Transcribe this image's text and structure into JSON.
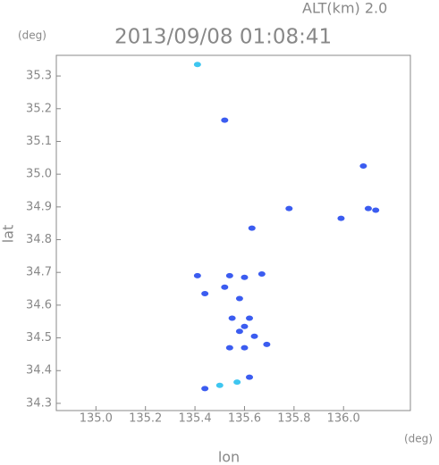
{
  "chart_data": {
    "type": "scatter",
    "title": "2013/09/08 01:08:41",
    "subtitle": "ALT(km) 2.0",
    "y_unit": "(deg)",
    "x_unit": "(deg)",
    "x_label": "lon",
    "y_label": "lat",
    "xlim": [
      134.84,
      136.27
    ],
    "ylim": [
      34.278,
      35.363
    ],
    "xticks": [
      {
        "value": 135,
        "label": "135.0"
      },
      135.2,
      135.4,
      135.6,
      135.8,
      {
        "value": 136,
        "label": "136.0"
      }
    ],
    "yticks": [
      34.3,
      34.4,
      34.5,
      34.6,
      34.7,
      34.8,
      34.9,
      {
        "value": 35,
        "label": "35.0"
      },
      35.1,
      35.2,
      35.3
    ],
    "series": [
      {
        "color": "#3b5cf0",
        "x": [
          135.52,
          136.08,
          136.1,
          136.13,
          135.99,
          135.78,
          135.63,
          135.41,
          135.44,
          135.54,
          135.6,
          135.67,
          135.52,
          135.58,
          135.55,
          135.62,
          135.6,
          135.58,
          135.54,
          135.6,
          135.69,
          135.64,
          135.62,
          135.44
        ],
        "values": [
          35.165,
          35.025,
          34.895,
          34.89,
          34.865,
          34.895,
          34.835,
          34.69,
          34.635,
          34.69,
          34.685,
          34.695,
          34.655,
          34.62,
          34.56,
          34.56,
          34.535,
          34.52,
          34.47,
          34.47,
          34.48,
          34.505,
          34.38,
          34.345
        ]
      },
      {
        "color": "#3ec6f0",
        "x": [
          135.41,
          135.5,
          135.57
        ],
        "values": [
          35.335,
          34.355,
          34.365
        ]
      }
    ]
  }
}
